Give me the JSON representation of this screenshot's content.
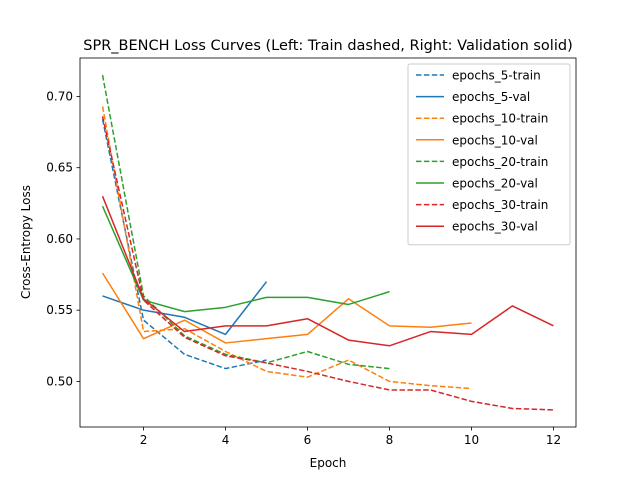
{
  "chart_data": {
    "type": "line",
    "title": "SPR_BENCH Loss Curves (Left: Train dashed, Right: Validation solid)",
    "xlabel": "Epoch",
    "ylabel": "Cross-Entropy Loss",
    "xlim": [
      0.45,
      12.55
    ],
    "ylim": [
      0.468,
      0.727
    ],
    "xticks": [
      2,
      4,
      6,
      8,
      10,
      12
    ],
    "yticks": [
      0.5,
      0.55,
      0.6,
      0.65,
      0.7
    ],
    "legend_position": "top-right",
    "series": [
      {
        "name": "epochs_5-train",
        "color": "#1f77b4",
        "dash": true,
        "x": [
          1,
          2,
          3,
          4,
          5
        ],
        "values": [
          0.684,
          0.543,
          0.519,
          0.509,
          0.515
        ]
      },
      {
        "name": "epochs_5-val",
        "color": "#1f77b4",
        "dash": false,
        "x": [
          1,
          2,
          3,
          4,
          5
        ],
        "values": [
          0.56,
          0.55,
          0.545,
          0.533,
          0.57
        ]
      },
      {
        "name": "epochs_10-train",
        "color": "#ff7f0e",
        "dash": true,
        "x": [
          1,
          2,
          3,
          4,
          5,
          6,
          7,
          8,
          9,
          10
        ],
        "values": [
          0.693,
          0.535,
          0.537,
          0.521,
          0.507,
          0.503,
          0.515,
          0.5,
          0.497,
          0.495
        ]
      },
      {
        "name": "epochs_10-val",
        "color": "#ff7f0e",
        "dash": false,
        "x": [
          1,
          2,
          3,
          4,
          5,
          6,
          7,
          8,
          9,
          10
        ],
        "values": [
          0.576,
          0.53,
          0.543,
          0.527,
          0.53,
          0.533,
          0.558,
          0.539,
          0.538,
          0.541
        ]
      },
      {
        "name": "epochs_20-train",
        "color": "#2ca02c",
        "dash": true,
        "x": [
          1,
          2,
          3,
          4,
          5,
          6,
          7,
          8
        ],
        "values": [
          0.715,
          0.56,
          0.532,
          0.519,
          0.513,
          0.521,
          0.512,
          0.509
        ]
      },
      {
        "name": "epochs_20-val",
        "color": "#2ca02c",
        "dash": false,
        "x": [
          1,
          2,
          3,
          4,
          5,
          6,
          7,
          8
        ],
        "values": [
          0.623,
          0.557,
          0.549,
          0.552,
          0.559,
          0.559,
          0.554,
          0.563
        ]
      },
      {
        "name": "epochs_30-train",
        "color": "#d62728",
        "dash": true,
        "x": [
          1,
          2,
          3,
          4,
          5,
          6,
          7,
          8,
          9,
          10,
          11,
          12
        ],
        "values": [
          0.686,
          0.557,
          0.531,
          0.518,
          0.513,
          0.507,
          0.5,
          0.494,
          0.494,
          0.486,
          0.481,
          0.48
        ]
      },
      {
        "name": "epochs_30-val",
        "color": "#d62728",
        "dash": false,
        "x": [
          1,
          2,
          3,
          4,
          5,
          6,
          7,
          8,
          9,
          10,
          11,
          12
        ],
        "values": [
          0.63,
          0.558,
          0.535,
          0.539,
          0.539,
          0.544,
          0.529,
          0.525,
          0.535,
          0.533,
          0.553,
          0.539
        ]
      }
    ]
  }
}
